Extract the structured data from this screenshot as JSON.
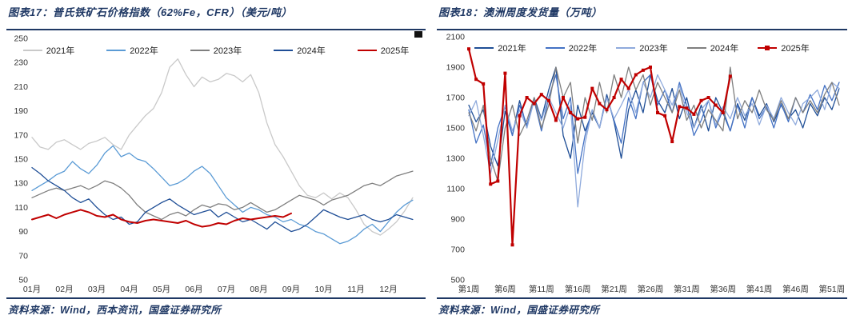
{
  "page": {
    "accent_color": "#1f3864",
    "background": "#ffffff"
  },
  "figures": [
    {
      "title": "图表17：普氏铁矿石价格指数（62%Fe，CFR）（美元/吨）",
      "source": "资料来源：Wind，西本资讯，国盛证券研究所"
    },
    {
      "title": "图表18：澳洲周度发货量（万吨）",
      "source": "资料来源：Wind，国盛证券研究所"
    }
  ],
  "chart_data": [
    {
      "type": "line",
      "title": "普氏铁矿石价格指数（62%Fe，CFR）（美元/吨）",
      "ylabel": "美元/吨",
      "ylim": [
        50,
        250
      ],
      "y_ticks": [
        50,
        70,
        90,
        110,
        130,
        150,
        170,
        190,
        210,
        230,
        250
      ],
      "grid": false,
      "legend_position": "top",
      "x_tick_labels": [
        "01月",
        "02月",
        "03月",
        "04月",
        "05月",
        "06月",
        "07月",
        "08月",
        "09月",
        "10月",
        "11月",
        "12月"
      ],
      "x_tick_positions": [
        0,
        4,
        8,
        12,
        16,
        20,
        24,
        28,
        32,
        36,
        40,
        44
      ],
      "x_count": 48,
      "series": [
        {
          "name": "2021年",
          "color": "#c9c9c9",
          "values": [
            168,
            160,
            158,
            164,
            166,
            162,
            158,
            163,
            165,
            168,
            162,
            158,
            170,
            178,
            186,
            192,
            205,
            226,
            233,
            220,
            210,
            218,
            214,
            216,
            221,
            219,
            214,
            220,
            205,
            180,
            162,
            152,
            140,
            128,
            120,
            118,
            122,
            117,
            122,
            118,
            108,
            96,
            90,
            87,
            92,
            98,
            107,
            118
          ]
        },
        {
          "name": "2022年",
          "color": "#5b9bd5",
          "values": [
            124,
            128,
            132,
            137,
            140,
            148,
            142,
            138,
            145,
            155,
            161,
            152,
            155,
            150,
            148,
            142,
            135,
            128,
            130,
            134,
            140,
            144,
            138,
            128,
            118,
            112,
            106,
            110,
            108,
            104,
            102,
            98,
            100,
            96,
            94,
            90,
            88,
            84,
            80,
            82,
            86,
            92,
            96,
            90,
            98,
            106,
            112,
            116
          ]
        },
        {
          "name": "2023年",
          "color": "#7f7f7f",
          "values": [
            118,
            121,
            124,
            126,
            124,
            126,
            128,
            125,
            128,
            132,
            130,
            126,
            120,
            112,
            106,
            103,
            100,
            104,
            106,
            103,
            108,
            112,
            110,
            113,
            112,
            108,
            110,
            114,
            110,
            106,
            108,
            112,
            116,
            120,
            118,
            116,
            112,
            116,
            118,
            120,
            124,
            128,
            130,
            128,
            132,
            136,
            138,
            140
          ]
        },
        {
          "name": "2024年",
          "color": "#1f4e96",
          "values": [
            143,
            138,
            132,
            128,
            124,
            118,
            114,
            117,
            110,
            104,
            100,
            102,
            96,
            98,
            106,
            110,
            114,
            117,
            112,
            108,
            104,
            106,
            108,
            102,
            106,
            102,
            98,
            100,
            96,
            92,
            98,
            94,
            90,
            92,
            96,
            102,
            108,
            105,
            102,
            100,
            102,
            104,
            100,
            98,
            100,
            104,
            102,
            100
          ]
        },
        {
          "name": "2025年",
          "color": "#c00000",
          "values": [
            100,
            102,
            104,
            101,
            104,
            106,
            108,
            106,
            103,
            102,
            104,
            100,
            98,
            97,
            99,
            100,
            99,
            98,
            97,
            99,
            96,
            94,
            95,
            97,
            96,
            99,
            101,
            100,
            101,
            102,
            103,
            102,
            105
          ]
        }
      ]
    },
    {
      "type": "line",
      "title": "澳洲周度发货量（万吨）",
      "ylabel": "万吨",
      "ylim": [
        500,
        2100
      ],
      "y_ticks": [
        500,
        700,
        900,
        1100,
        1300,
        1500,
        1700,
        1900,
        2100
      ],
      "grid": false,
      "legend_position": "top",
      "x_tick_labels": [
        "第1周",
        "第6周",
        "第11周",
        "第16周",
        "第21周",
        "第26周",
        "第31周",
        "第36周",
        "第41周",
        "第46周",
        "第51周"
      ],
      "x_tick_positions": [
        0,
        5,
        10,
        15,
        20,
        25,
        30,
        35,
        40,
        45,
        50
      ],
      "x_count": 52,
      "series": [
        {
          "name": "2021年",
          "color": "#1f4e96",
          "values": [
            1650,
            1540,
            1620,
            1380,
            1250,
            1610,
            1450,
            1680,
            1500,
            1700,
            1560,
            1750,
            1900,
            1450,
            1300,
            1650,
            1480,
            1600,
            1500,
            1720,
            1540,
            1300,
            1620,
            1750,
            1600,
            1850,
            1680,
            1600,
            1760,
            1560,
            1700,
            1500,
            1650,
            1480,
            1700,
            1600,
            1480,
            1660,
            1550,
            1700,
            1580,
            1660,
            1540,
            1650,
            1560,
            1620,
            1500,
            1660,
            1580,
            1700,
            1620,
            1760
          ]
        },
        {
          "name": "2022年",
          "color": "#4472c4",
          "values": [
            1620,
            1400,
            1520,
            1250,
            1500,
            1640,
            1450,
            1650,
            1520,
            1680,
            1480,
            1700,
            1850,
            1560,
            1700,
            1200,
            1450,
            1620,
            1500,
            1700,
            1550,
            1400,
            1700,
            1560,
            1800,
            1850,
            1650,
            1750,
            1600,
            1800,
            1650,
            1450,
            1550,
            1680,
            1500,
            1620,
            1480,
            1650,
            1500,
            1700,
            1560,
            1640,
            1500,
            1660,
            1540,
            1700,
            1600,
            1720,
            1620,
            1780,
            1680,
            1800
          ]
        },
        {
          "name": "2023年",
          "color": "#8faadc",
          "values": [
            1580,
            1680,
            1450,
            1200,
            1420,
            1650,
            1480,
            1620,
            1500,
            1680,
            1550,
            1700,
            1600,
            1500,
            1650,
            980,
            1400,
            1620,
            1500,
            1700,
            1560,
            1650,
            1750,
            1600,
            1800,
            1700,
            1850,
            1750,
            1650,
            1780,
            1600,
            1500,
            1620,
            1680,
            1520,
            1640,
            1560,
            1700,
            1580,
            1660,
            1520,
            1650,
            1560,
            1700,
            1600,
            1520,
            1660,
            1700,
            1750,
            1620,
            1800,
            1760
          ]
        },
        {
          "name": "2024年",
          "color": "#7f7f7f",
          "values": [
            1600,
            1480,
            1650,
            1300,
            1150,
            1500,
            1650,
            1450,
            1550,
            1700,
            1500,
            1650,
            1900,
            1700,
            1800,
            1400,
            1700,
            1550,
            1800,
            1600,
            1850,
            1700,
            1900,
            1750,
            1850,
            1650,
            1800,
            1700,
            1600,
            1750,
            1550,
            1650,
            1500,
            1620,
            1550,
            1480,
            1900,
            1560,
            1680,
            1600,
            1750,
            1620,
            1550,
            1680,
            1560,
            1700,
            1600,
            1680,
            1600,
            1720,
            1800,
            1650
          ]
        },
        {
          "name": "2025年",
          "color": "#c00000",
          "marker": "square",
          "values": [
            2020,
            1820,
            1790,
            1130,
            1150,
            1860,
            730,
            1580,
            1700,
            1660,
            1720,
            1680,
            1550,
            1700,
            1600,
            1560,
            1570,
            1760,
            1660,
            1620,
            1700,
            1820,
            1760,
            1850,
            1880,
            1900,
            1600,
            1580,
            1410,
            1640,
            1630,
            1590,
            1680,
            1700,
            1650,
            1600,
            1840
          ]
        }
      ]
    }
  ]
}
